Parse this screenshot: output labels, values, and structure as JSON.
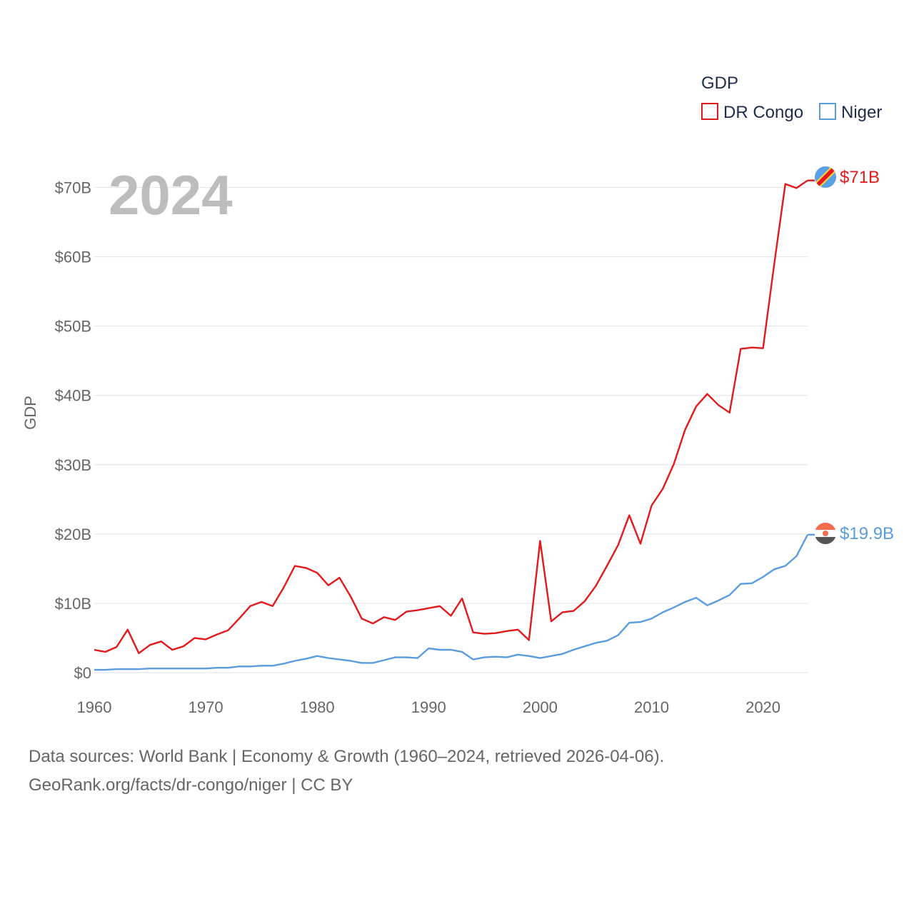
{
  "chart_data": {
    "type": "line",
    "big_label": "2024",
    "ylabel": "GDP",
    "xlim": [
      1960,
      2024
    ],
    "ylim": [
      0,
      72
    ],
    "x_ticks": [
      1960,
      1970,
      1980,
      1990,
      2000,
      2010,
      2020
    ],
    "y_ticks": [
      0,
      10,
      20,
      30,
      40,
      50,
      60,
      70
    ],
    "y_tick_labels": [
      "$0",
      "$10B",
      "$20B",
      "$30B",
      "$40B",
      "$50B",
      "$60B",
      "$70B"
    ],
    "legend": {
      "title": "GDP",
      "position": "top-right"
    },
    "x": [
      1960,
      1961,
      1962,
      1963,
      1964,
      1965,
      1966,
      1967,
      1968,
      1969,
      1970,
      1971,
      1972,
      1973,
      1974,
      1975,
      1976,
      1977,
      1978,
      1979,
      1980,
      1981,
      1982,
      1983,
      1984,
      1985,
      1986,
      1987,
      1988,
      1989,
      1990,
      1991,
      1992,
      1993,
      1994,
      1995,
      1996,
      1997,
      1998,
      1999,
      2000,
      2001,
      2002,
      2003,
      2004,
      2005,
      2006,
      2007,
      2008,
      2009,
      2010,
      2011,
      2012,
      2013,
      2014,
      2015,
      2016,
      2017,
      2018,
      2019,
      2020,
      2021,
      2022,
      2023,
      2024
    ],
    "series": [
      {
        "name": "DR Congo",
        "color": "#e3191c",
        "end_label": "$71B",
        "values": [
          3.3,
          3.0,
          3.7,
          6.2,
          2.8,
          4.0,
          4.5,
          3.3,
          3.8,
          5.0,
          4.8,
          5.5,
          6.1,
          7.8,
          9.6,
          10.2,
          9.6,
          12.3,
          15.4,
          15.1,
          14.4,
          12.6,
          13.7,
          11.0,
          7.8,
          7.1,
          8.0,
          7.6,
          8.8,
          9.0,
          9.3,
          9.6,
          8.2,
          10.7,
          5.8,
          5.6,
          5.7,
          6.0,
          6.2,
          4.7,
          19.0,
          7.4,
          8.7,
          8.9,
          10.3,
          12.5,
          15.4,
          18.4,
          22.7,
          18.6,
          24.1,
          26.5,
          30.1,
          35.0,
          38.4,
          40.2,
          38.6,
          37.5,
          46.7,
          46.9,
          46.8,
          58.9,
          70.5,
          69.9,
          71.0
        ]
      },
      {
        "name": "Niger",
        "color": "#5a9ddf",
        "end_label": "$19.9B",
        "values": [
          0.4,
          0.4,
          0.5,
          0.5,
          0.5,
          0.6,
          0.6,
          0.6,
          0.6,
          0.6,
          0.6,
          0.7,
          0.7,
          0.9,
          0.9,
          1.0,
          1.0,
          1.3,
          1.7,
          2.0,
          2.4,
          2.1,
          1.9,
          1.7,
          1.4,
          1.4,
          1.8,
          2.2,
          2.2,
          2.1,
          3.5,
          3.3,
          3.3,
          3.0,
          1.9,
          2.2,
          2.3,
          2.2,
          2.6,
          2.4,
          2.1,
          2.4,
          2.7,
          3.3,
          3.8,
          4.3,
          4.6,
          5.4,
          7.2,
          7.3,
          7.8,
          8.7,
          9.4,
          10.2,
          10.8,
          9.7,
          10.4,
          11.2,
          12.8,
          12.9,
          13.8,
          14.9,
          15.4,
          16.8,
          19.9
        ]
      }
    ]
  },
  "footer": {
    "line1": "Data sources: World Bank | Economy & Growth (1960–2024, retrieved 2026-04-06).",
    "line2": "GeoRank.org/facts/dr-congo/niger | CC BY"
  }
}
